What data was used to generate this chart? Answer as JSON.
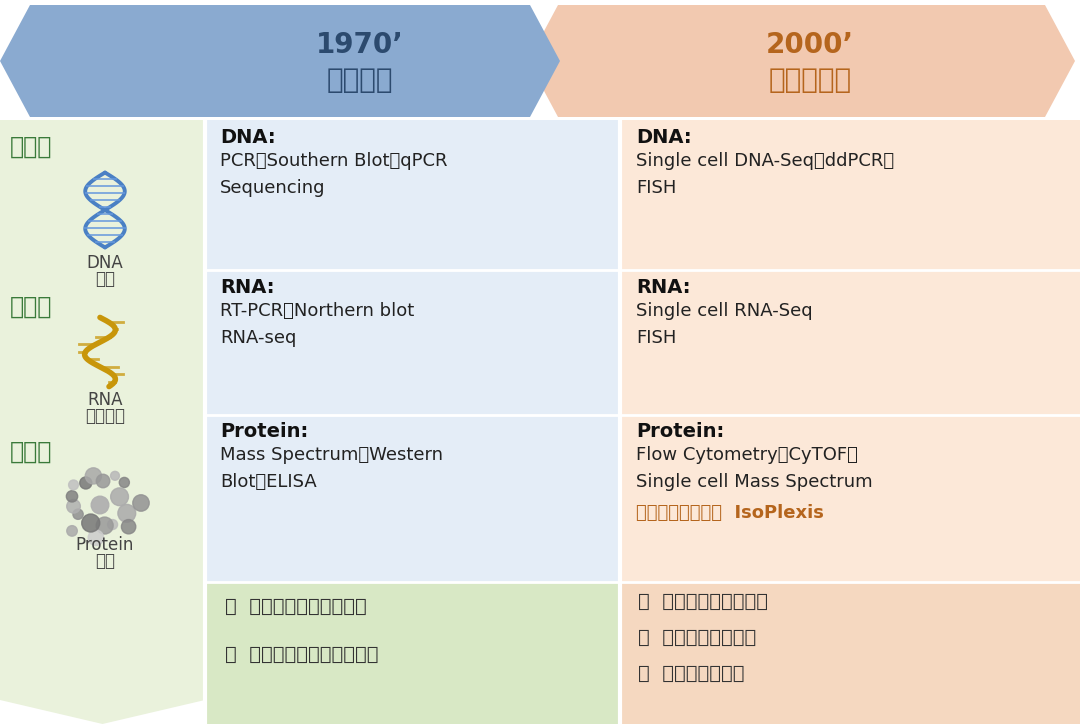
{
  "fig_width": 10.8,
  "fig_height": 7.24,
  "bg_color": "#ffffff",
  "arrow1_color": "#8aaad0",
  "arrow2_color": "#f2c9b0",
  "arrow1_title_line1": "1970’",
  "arrow1_title_line2": "群组水平",
  "arrow2_title_line1": "2000’",
  "arrow2_title_line2": "单细胞水平",
  "arrow_title_color": "#2c4a6e",
  "arrow2_title_color": "#b5651d",
  "left_col_color": "#eaf2dc",
  "mid_col_color": "#e4edf7",
  "right_col_color": "#fce8d8",
  "bottom_left_color": "#d8e8c5",
  "bottom_right_color": "#f5d8c0",
  "left_labels": [
    "基因组",
    "转录组",
    "蛋白组"
  ],
  "left_label_color": "#3a7a3a",
  "left_sub_label_color": "#444444",
  "mid_dna_bold": "DNA:",
  "mid_dna_text": "PCR、Southern Blot、qPCR\nSequencing",
  "mid_rna_bold": "RNA:",
  "mid_rna_text": "RT-PCR、Northern blot\nRNA-seq",
  "mid_protein_bold": "Protein:",
  "mid_protein_text": "Mass Spectrum、Western\nBlot、ELISA",
  "right_dna_bold": "DNA:",
  "right_dna_text": "Single cell DNA-Seq、ddPCR、\nFISH",
  "right_rna_bold": "RNA:",
  "right_rna_text": "Single cell RNA-Seq\nFISH",
  "right_protein_bold": "Protein:",
  "right_protein_text": "Flow Cytometry、CyTOF、\nSingle cell Mass Spectrum",
  "right_protein_highlight": "单细胞蛋白质组学  IsoPlexis",
  "highlight_color": "#b5651d",
  "bottom_left_items": [
    "基础群体平均水平检测",
    "无法分辨细胞之间异质性"
  ],
  "bottom_right_items": [
    "基因组或转录组测序",
    "非靶向蛋白质检测",
    "膜表面蛋白检测"
  ],
  "bottom_text_color": "#333333",
  "text_color": "#222222",
  "bold_color": "#111111"
}
